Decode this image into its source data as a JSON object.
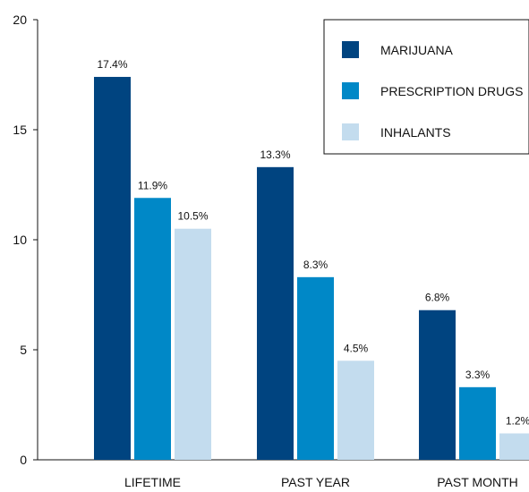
{
  "chart_data": {
    "type": "bar",
    "categories": [
      "LIFETIME",
      "PAST YEAR",
      "PAST MONTH"
    ],
    "series": [
      {
        "name": "MARIJUANA",
        "values": [
          17.4,
          13.3,
          6.8
        ],
        "labels": [
          "17.4%",
          "13.3%",
          "6.8%"
        ],
        "color": "#004480"
      },
      {
        "name": "PRESCRIPTION DRUGS",
        "values": [
          11.9,
          8.3,
          3.3
        ],
        "labels": [
          "11.9%",
          "8.3%",
          "3.3%"
        ],
        "color": "#0088c7"
      },
      {
        "name": "INHALANTS",
        "values": [
          10.5,
          4.5,
          1.2
        ],
        "labels": [
          "10.5%",
          "4.5%",
          "1.2%"
        ],
        "color": "#c3dcee"
      }
    ],
    "ylim": [
      0,
      20
    ],
    "yticks": [
      "0",
      "5",
      "10",
      "15",
      "20"
    ],
    "legend_position": "top-right",
    "grid": false
  }
}
